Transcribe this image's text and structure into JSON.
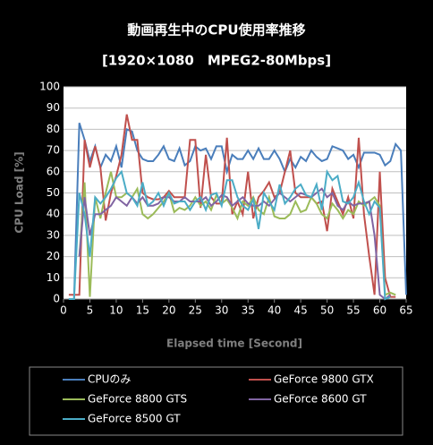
{
  "chart_data": {
    "type": "line",
    "title": "動画再生中のCPU使用率推移",
    "subtitle": "[1920×1080　MPEG2-80Mbps]",
    "x_label": "Elapsed time [Second]",
    "y_label": "CPU Load [%]",
    "x": [
      1,
      2,
      3,
      4,
      5,
      6,
      7,
      8,
      9,
      10,
      11,
      12,
      13,
      14,
      15,
      16,
      17,
      18,
      19,
      20,
      21,
      22,
      23,
      24,
      25,
      26,
      27,
      28,
      29,
      30,
      31,
      32,
      33,
      34,
      35,
      36,
      37,
      38,
      39,
      40,
      41,
      42,
      43,
      44,
      45,
      46,
      47,
      48,
      49,
      50,
      51,
      52,
      53,
      54,
      55,
      56,
      57,
      58,
      59,
      60,
      61,
      62,
      63,
      64,
      65
    ],
    "xlim": [
      0,
      65
    ],
    "xticks": [
      0,
      5,
      10,
      15,
      20,
      25,
      30,
      35,
      40,
      45,
      50,
      55,
      60,
      65
    ],
    "ylim": [
      0,
      100
    ],
    "yticks": [
      0,
      10,
      20,
      30,
      40,
      50,
      60,
      70,
      80,
      90,
      100
    ],
    "grid": true,
    "series": [
      {
        "name": "CPUのみ",
        "color": "#4a7ebb",
        "values": [
          0,
          0,
          83,
          75,
          65,
          72,
          62,
          68,
          65,
          72,
          62,
          80,
          79,
          70,
          66,
          65,
          65,
          68,
          72,
          66,
          65,
          71,
          63,
          65,
          72,
          70,
          71,
          66,
          72,
          72,
          60,
          68,
          66,
          66,
          70,
          66,
          71,
          66,
          66,
          70,
          66,
          60,
          66,
          62,
          67,
          65,
          70,
          67,
          65,
          66,
          72,
          71,
          70,
          66,
          68,
          62,
          69,
          69,
          69,
          68,
          63,
          65,
          73,
          70,
          2
        ]
      },
      {
        "name": "GeForce 9800  GTX",
        "color": "#c0504d",
        "values": [
          2,
          2,
          2,
          75,
          62,
          72,
          62,
          37,
          50,
          58,
          68,
          87,
          75,
          75,
          50,
          48,
          47,
          47,
          48,
          51,
          48,
          48,
          48,
          75,
          75,
          43,
          68,
          48,
          45,
          45,
          76,
          40,
          46,
          40,
          60,
          38,
          48,
          51,
          55,
          48,
          50,
          60,
          70,
          50,
          48,
          48,
          48,
          45,
          46,
          32,
          52,
          46,
          40,
          48,
          38,
          76,
          40,
          20,
          2,
          60,
          10,
          1,
          1,
          null,
          null
        ]
      },
      {
        "name": "GeForce 8800  GTS",
        "color": "#9bbb59",
        "values": [
          null,
          null,
          20,
          55,
          1,
          48,
          38,
          50,
          60,
          48,
          48,
          50,
          48,
          52,
          40,
          38,
          40,
          43,
          46,
          50,
          41,
          43,
          42,
          44,
          48,
          44,
          46,
          42,
          49,
          45,
          47,
          43,
          38,
          46,
          44,
          48,
          42,
          40,
          48,
          39,
          38,
          38,
          40,
          46,
          41,
          42,
          48,
          45,
          40,
          38,
          45,
          42,
          38,
          42,
          40,
          46,
          44,
          46,
          48,
          44,
          2,
          3,
          2,
          null,
          null
        ]
      },
      {
        "name": "GeForce 8600  GT",
        "color": "#8064a2",
        "values": [
          null,
          null,
          20,
          48,
          30,
          40,
          40,
          42,
          44,
          48,
          46,
          44,
          48,
          45,
          48,
          44,
          44,
          45,
          48,
          48,
          46,
          46,
          48,
          46,
          46,
          46,
          48,
          44,
          46,
          49,
          48,
          44,
          46,
          48,
          45,
          44,
          44,
          46,
          44,
          47,
          50,
          48,
          46,
          48,
          50,
          49,
          48,
          50,
          52,
          48,
          50,
          44,
          42,
          46,
          44,
          45,
          45,
          46,
          30,
          2,
          0,
          2,
          null,
          null,
          null
        ]
      },
      {
        "name": "GeForce 8500  GT",
        "color": "#4bacc6",
        "values": [
          0,
          0,
          50,
          40,
          20,
          48,
          45,
          48,
          52,
          57,
          60,
          50,
          48,
          44,
          55,
          44,
          46,
          50,
          44,
          50,
          45,
          46,
          46,
          42,
          46,
          48,
          42,
          49,
          50,
          44,
          56,
          56,
          48,
          44,
          42,
          47,
          33,
          50,
          46,
          42,
          54,
          45,
          48,
          52,
          54,
          49,
          48,
          54,
          42,
          60,
          56,
          58,
          46,
          45,
          48,
          55,
          46,
          40,
          46,
          43,
          0,
          1,
          null,
          null,
          null
        ]
      }
    ]
  }
}
